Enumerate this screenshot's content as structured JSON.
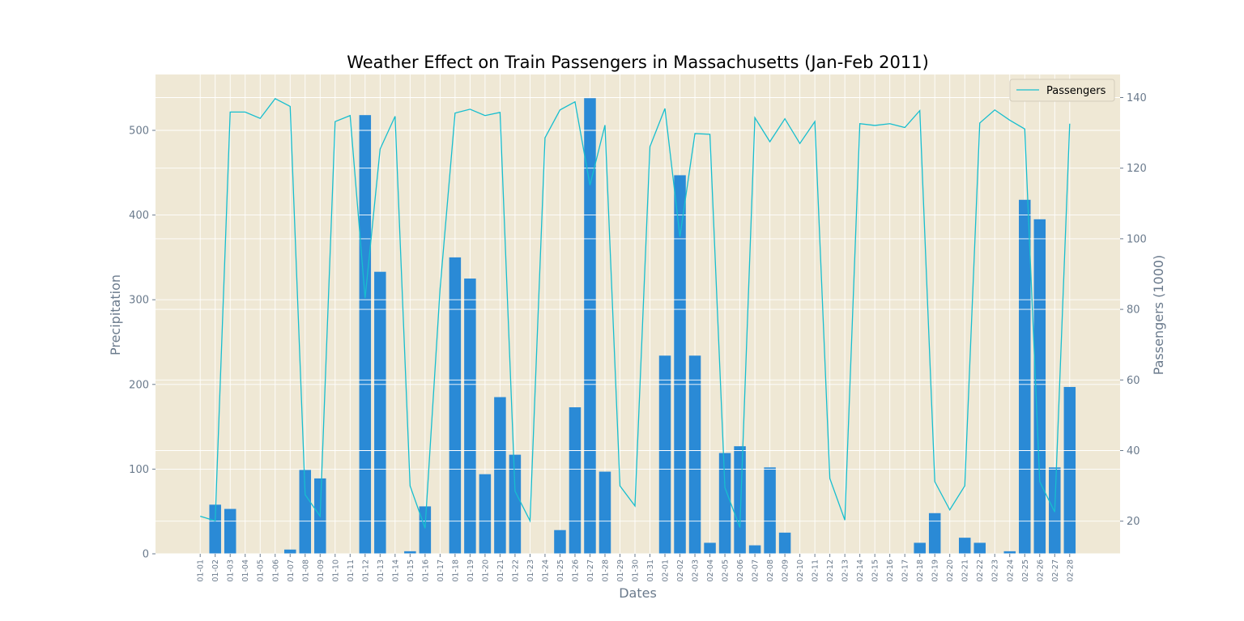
{
  "chart_data": {
    "type": "bar",
    "title": "Weather Effect on Train Passengers in Massachusetts (Jan-Feb 2011)",
    "xlabel": "Dates",
    "ylabel": "Precipitation",
    "y2label": "Passengers (1000)",
    "ylim": [
      0,
      566
    ],
    "y2lim": [
      10.5,
      146
    ],
    "yticks": [
      0,
      100,
      200,
      300,
      400,
      500
    ],
    "y2ticks": [
      20,
      40,
      60,
      80,
      100,
      120,
      140
    ],
    "grid": true,
    "legend_position": "top-right",
    "categories": [
      "01-01",
      "01-02",
      "01-03",
      "01-04",
      "01-05",
      "01-06",
      "01-07",
      "01-08",
      "01-09",
      "01-10",
      "01-11",
      "01-12",
      "01-13",
      "01-14",
      "01-15",
      "01-16",
      "01-17",
      "01-18",
      "01-19",
      "01-20",
      "01-21",
      "01-22",
      "01-23",
      "01-24",
      "01-25",
      "01-26",
      "01-27",
      "01-28",
      "01-29",
      "01-30",
      "01-31",
      "02-01",
      "02-02",
      "02-03",
      "02-04",
      "02-05",
      "02-06",
      "02-07",
      "02-08",
      "02-09",
      "02-10",
      "02-11",
      "02-12",
      "02-13",
      "02-14",
      "02-15",
      "02-16",
      "02-17",
      "02-18",
      "02-19",
      "02-20",
      "02-21",
      "02-22",
      "02-23",
      "02-24",
      "02-25",
      "02-26",
      "02-27",
      "02-28"
    ],
    "series": [
      {
        "type": "bar",
        "axis": "left",
        "color": "#2a8ad6",
        "values": [
          0,
          58,
          53,
          0,
          0,
          0,
          5,
          99,
          89,
          0,
          0,
          518,
          333,
          0,
          3,
          56,
          0,
          350,
          325,
          94,
          185,
          117,
          0,
          0,
          28,
          173,
          538,
          97,
          0,
          0,
          0,
          234,
          447,
          234,
          13,
          119,
          127,
          10,
          102,
          25,
          0,
          0,
          0,
          0,
          0,
          0,
          0,
          0,
          13,
          48,
          0,
          19,
          13,
          0,
          3,
          418,
          395,
          102,
          197
        ]
      },
      {
        "type": "line",
        "axis": "right",
        "name": "Passengers",
        "color": "#17becf",
        "values": [
          21.4,
          20.1,
          135.9,
          135.9,
          134.1,
          139.7,
          137.5,
          27.5,
          21.4,
          133.2,
          134.9,
          83.2,
          125.4,
          134.7,
          30,
          18,
          85.8,
          135.6,
          136.7,
          134.9,
          135.8,
          28.5,
          20.1,
          128.6,
          136.5,
          138.8,
          115.2,
          132.2,
          30,
          24.3,
          126.1,
          136.9,
          100.6,
          129.8,
          129.6,
          29.5,
          18.2,
          134.3,
          127.5,
          134,
          127,
          133.2,
          32.1,
          20.3,
          132.6,
          132.1,
          132.6,
          131.5,
          136.3,
          31.2,
          23.2,
          30,
          132.8,
          136.5,
          133.6,
          131.1,
          31.2,
          22.6,
          132.6
        ]
      }
    ]
  }
}
